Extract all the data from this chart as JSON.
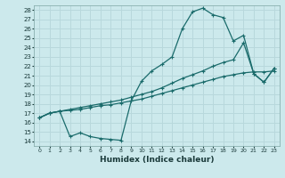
{
  "xlabel": "Humidex (Indice chaleur)",
  "bg_color": "#cce9ec",
  "line_color": "#1a6b6b",
  "grid_color": "#b8d8dc",
  "xlim": [
    -0.5,
    23.5
  ],
  "ylim": [
    13.5,
    28.5
  ],
  "xticks": [
    0,
    1,
    2,
    3,
    4,
    5,
    6,
    7,
    8,
    9,
    10,
    11,
    12,
    13,
    14,
    15,
    16,
    17,
    18,
    19,
    20,
    21,
    22,
    23
  ],
  "yticks": [
    14,
    15,
    16,
    17,
    18,
    19,
    20,
    21,
    22,
    23,
    24,
    25,
    26,
    27,
    28
  ],
  "line1_x": [
    0,
    1,
    2,
    3,
    4,
    5,
    6,
    7,
    8,
    9,
    10,
    11,
    12,
    13,
    14,
    15,
    16,
    17,
    18,
    19,
    20,
    21,
    22,
    23
  ],
  "line1_y": [
    16.5,
    17.0,
    17.2,
    17.3,
    17.4,
    17.6,
    17.8,
    17.9,
    18.1,
    18.3,
    18.5,
    18.8,
    19.1,
    19.4,
    19.7,
    20.0,
    20.3,
    20.6,
    20.9,
    21.1,
    21.3,
    21.4,
    21.4,
    21.5
  ],
  "line2_x": [
    0,
    1,
    2,
    3,
    4,
    5,
    6,
    7,
    8,
    9,
    10,
    11,
    12,
    13,
    14,
    15,
    16,
    17,
    18,
    19,
    20,
    21,
    22,
    23
  ],
  "line2_y": [
    16.5,
    17.0,
    17.2,
    17.4,
    17.6,
    17.8,
    18.0,
    18.2,
    18.4,
    18.7,
    19.0,
    19.3,
    19.7,
    20.2,
    20.7,
    21.1,
    21.5,
    22.0,
    22.4,
    22.7,
    24.5,
    21.2,
    20.3,
    21.8
  ],
  "line3_x": [
    0,
    1,
    2,
    3,
    4,
    5,
    6,
    7,
    8,
    9,
    10,
    11,
    12,
    13,
    14,
    15,
    16,
    17,
    18,
    19,
    20,
    21,
    22,
    23
  ],
  "line3_y": [
    16.5,
    17.0,
    17.2,
    14.5,
    14.9,
    14.5,
    14.3,
    14.2,
    14.1,
    18.3,
    20.4,
    21.5,
    22.2,
    23.0,
    26.0,
    27.8,
    28.2,
    27.5,
    27.2,
    24.7,
    25.3,
    21.2,
    20.3,
    21.8
  ]
}
